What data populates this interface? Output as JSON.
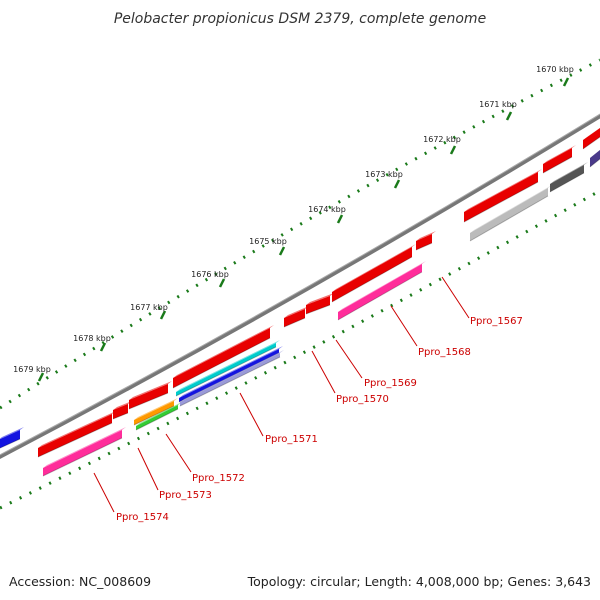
{
  "title": "Pelobacter propionicus DSM 2379, complete genome",
  "footer": {
    "accession": "Accession: NC_008609",
    "summary": "Topology: circular; Length: 4,008,000 bp; Genes: 3,643"
  },
  "ticks": [
    {
      "label": "1670 kbp"
    },
    {
      "label": "1671 kbp"
    },
    {
      "label": "1672 kbp"
    },
    {
      "label": "1673 kbp"
    },
    {
      "label": "1674 kbp"
    },
    {
      "label": "1675 kbp"
    },
    {
      "label": "1676 kbp"
    },
    {
      "label": "1677 kbp"
    },
    {
      "label": "1678 kbp"
    },
    {
      "label": "1679 kbp"
    }
  ],
  "genes": [
    {
      "label": "Ppro_1567",
      "color": "#e80000"
    },
    {
      "label": "Ppro_1568",
      "color": "#e80000"
    },
    {
      "label": "Ppro_1569",
      "color": "#e80000"
    },
    {
      "label": "Ppro_1570",
      "color": "#e80000"
    },
    {
      "label": "Ppro_1571",
      "color": "#e80000"
    },
    {
      "label": "Ppro_1572",
      "color": "#e80000"
    },
    {
      "label": "Ppro_1573",
      "color": "#e80000"
    },
    {
      "label": "Ppro_1574",
      "color": "#e80000"
    }
  ],
  "colors": {
    "cds": "#e80000",
    "backbone": "#777777",
    "tick": "#1a7a1a",
    "label": "#cc0000",
    "pink": "#ff2d9a",
    "gray": "#bbbbbb",
    "darkgray": "#555555",
    "blue": "#1414e0",
    "navy": "#4a3a8a",
    "cyan": "#00cccc",
    "orange": "#ff9900",
    "green": "#33cc33"
  }
}
